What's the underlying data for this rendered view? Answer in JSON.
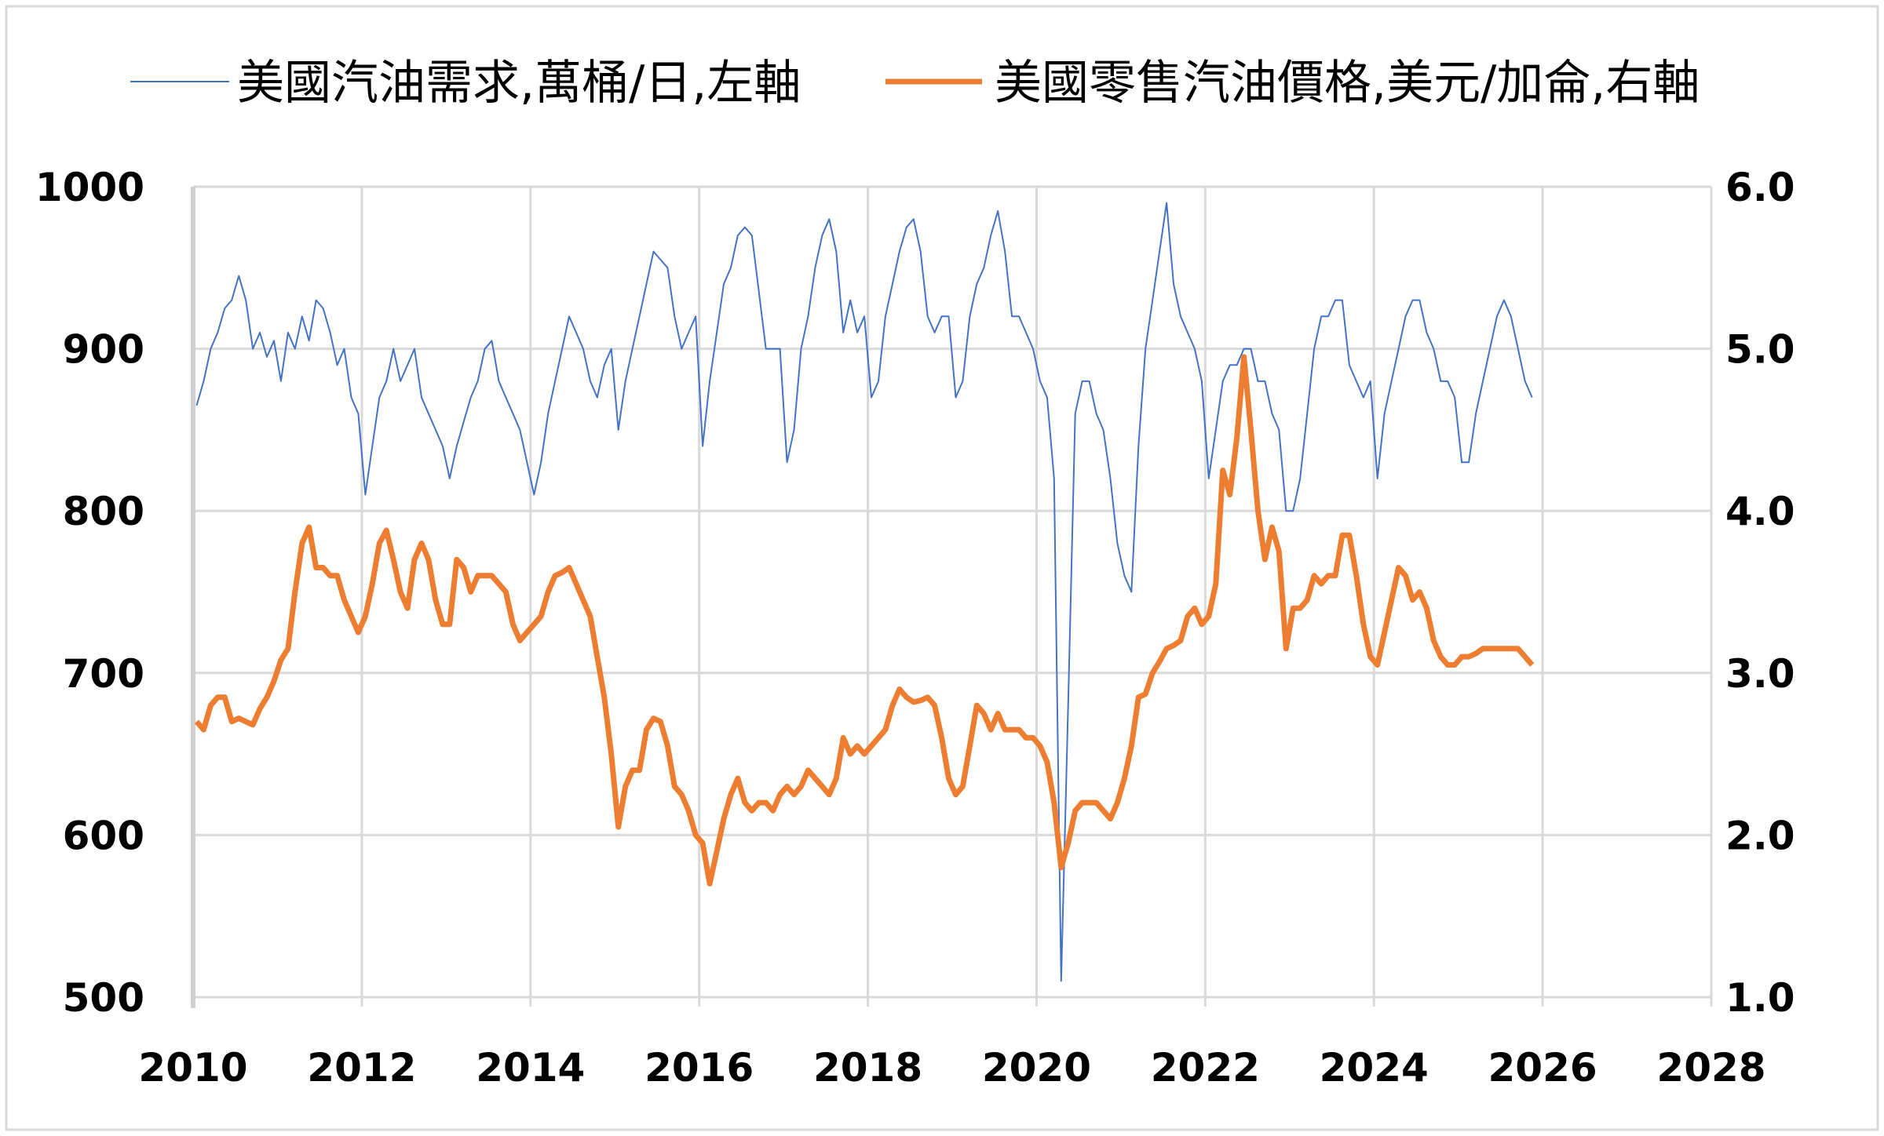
{
  "chart_data": {
    "type": "line",
    "title": "",
    "xlabel": "",
    "grid": true,
    "legend_placement": "top",
    "x_axis": {
      "range": [
        2010,
        2028
      ],
      "ticks": [
        "2010",
        "2012",
        "2014",
        "2016",
        "2018",
        "2020",
        "2022",
        "2024",
        "2026",
        "2028"
      ]
    },
    "y_left": {
      "range": [
        500,
        1000
      ],
      "ticks": [
        "1000",
        "900",
        "800",
        "700",
        "600",
        "500"
      ]
    },
    "y_right": {
      "range": [
        1.0,
        6.0
      ],
      "ticks": [
        "6.0",
        "5.0",
        "4.0",
        "3.0",
        "2.0",
        "1.0"
      ]
    },
    "series": [
      {
        "name": "美國汽油需求,萬桶/日,左軸",
        "axis": "left",
        "color": "#4472C4",
        "monthly_values_by_year": {
          "2010": [
            865,
            880,
            900,
            910,
            925,
            930,
            945,
            930,
            900,
            910,
            895,
            905
          ],
          "2011": [
            880,
            910,
            900,
            920,
            905,
            930,
            925,
            910,
            890,
            900,
            870,
            860
          ],
          "2012": [
            810,
            840,
            870,
            880,
            900,
            880,
            890,
            900,
            870,
            860,
            850,
            840
          ],
          "2013": [
            820,
            840,
            855,
            870,
            880,
            900,
            905,
            880,
            870,
            860,
            850,
            830
          ],
          "2014": [
            810,
            830,
            860,
            880,
            900,
            920,
            910,
            900,
            880,
            870,
            890,
            900
          ],
          "2015": [
            850,
            880,
            900,
            920,
            940,
            960,
            955,
            950,
            920,
            900,
            910,
            920
          ],
          "2016": [
            840,
            880,
            910,
            940,
            950,
            970,
            975,
            970,
            935,
            900,
            900,
            900
          ],
          "2017": [
            830,
            850,
            900,
            920,
            950,
            970,
            980,
            960,
            910,
            930,
            910,
            920
          ],
          "2018": [
            870,
            880,
            920,
            940,
            960,
            975,
            980,
            960,
            920,
            910,
            920,
            920
          ],
          "2019": [
            870,
            880,
            920,
            940,
            950,
            970,
            985,
            960,
            920,
            920,
            910,
            900
          ],
          "2020": [
            880,
            870,
            820,
            510,
            680,
            860,
            880,
            880,
            860,
            850,
            820,
            780
          ],
          "2021": [
            760,
            750,
            840,
            900,
            930,
            960,
            990,
            940,
            920,
            910,
            900,
            880
          ],
          "2022": [
            820,
            850,
            880,
            890,
            890,
            900,
            900,
            880,
            880,
            860,
            850,
            800
          ],
          "2023": [
            800,
            820,
            860,
            900,
            920,
            920,
            930,
            930,
            890,
            880,
            870,
            880
          ],
          "2024": [
            820,
            860,
            880,
            900,
            920,
            930,
            930,
            910,
            900,
            880,
            880,
            870
          ],
          "2025": [
            830,
            830,
            860,
            880,
            900,
            920,
            930,
            920,
            900,
            880,
            870
          ]
        }
      },
      {
        "name": "美國零售汽油價格,美元/加侖,右軸",
        "axis": "right",
        "color": "#ED7D31",
        "monthly_values_by_year": {
          "2010": [
            2.7,
            2.65,
            2.8,
            2.85,
            2.85,
            2.7,
            2.72,
            2.7,
            2.68,
            2.78,
            2.85,
            2.95
          ],
          "2011": [
            3.08,
            3.15,
            3.5,
            3.8,
            3.9,
            3.65,
            3.65,
            3.6,
            3.6,
            3.45,
            3.35,
            3.25
          ],
          "2012": [
            3.35,
            3.55,
            3.8,
            3.88,
            3.7,
            3.5,
            3.4,
            3.7,
            3.8,
            3.7,
            3.45,
            3.3
          ],
          "2013": [
            3.3,
            3.7,
            3.65,
            3.5,
            3.6,
            3.6,
            3.6,
            3.55,
            3.5,
            3.3,
            3.2,
            3.25
          ],
          "2014": [
            3.3,
            3.35,
            3.5,
            3.6,
            3.62,
            3.65,
            3.55,
            3.45,
            3.35,
            3.1,
            2.85,
            2.5
          ],
          "2015": [
            2.05,
            2.3,
            2.4,
            2.4,
            2.65,
            2.72,
            2.7,
            2.55,
            2.3,
            2.25,
            2.15,
            2.0
          ],
          "2016": [
            1.95,
            1.7,
            1.9,
            2.1,
            2.25,
            2.35,
            2.2,
            2.15,
            2.2,
            2.2,
            2.15,
            2.25
          ],
          "2017": [
            2.3,
            2.25,
            2.3,
            2.4,
            2.35,
            2.3,
            2.25,
            2.35,
            2.6,
            2.5,
            2.55,
            2.5
          ],
          "2018": [
            2.55,
            2.6,
            2.65,
            2.8,
            2.9,
            2.85,
            2.82,
            2.83,
            2.85,
            2.8,
            2.6,
            2.35
          ],
          "2019": [
            2.25,
            2.3,
            2.55,
            2.8,
            2.75,
            2.65,
            2.75,
            2.65,
            2.65,
            2.65,
            2.6,
            2.6
          ],
          "2020": [
            2.55,
            2.45,
            2.2,
            1.8,
            1.95,
            2.15,
            2.2,
            2.2,
            2.2,
            2.15,
            2.1,
            2.2
          ],
          "2021": [
            2.35,
            2.55,
            2.85,
            2.87,
            3.0,
            3.07,
            3.15,
            3.17,
            3.2,
            3.35,
            3.4,
            3.3
          ],
          "2022": [
            3.35,
            3.55,
            4.25,
            4.1,
            4.45,
            4.95,
            4.5,
            4.0,
            3.7,
            3.9,
            3.75,
            3.15
          ],
          "2023": [
            3.4,
            3.4,
            3.45,
            3.6,
            3.55,
            3.6,
            3.6,
            3.85,
            3.85,
            3.6,
            3.3,
            3.1
          ],
          "2024": [
            3.05,
            3.25,
            3.45,
            3.65,
            3.6,
            3.45,
            3.5,
            3.4,
            3.2,
            3.1,
            3.05,
            3.05
          ],
          "2025": [
            3.1,
            3.1,
            3.12,
            3.15,
            3.15,
            3.15,
            3.15,
            3.15,
            3.15,
            3.1,
            3.05
          ]
        }
      }
    ]
  }
}
